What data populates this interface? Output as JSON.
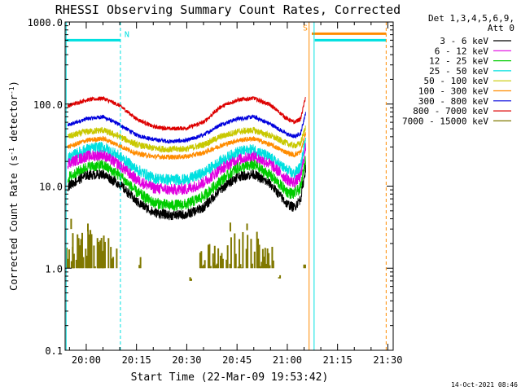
{
  "chart_data": {
    "type": "line",
    "title": "RHESSI Observing Summary Count Rates, Corrected",
    "xlabel": "Start Time (22-Mar-09 19:53:42)",
    "ylabel_main": "Corrected Count Rate (s",
    "ylabel_sup1": "-1",
    "ylabel_mid": " detector",
    "ylabel_sup2": "-1",
    "ylabel_end": ")",
    "y_scale": "log",
    "ylim": [
      0.1,
      1000
    ],
    "xlim_minutes": [
      -6.3,
      91.6
    ],
    "y_ticks": [
      {
        "value": 1000,
        "label": "1000.0"
      },
      {
        "value": 100,
        "label": "100.0"
      },
      {
        "value": 10,
        "label": "10.0"
      },
      {
        "value": 1,
        "label": "1.0"
      },
      {
        "value": 0.1,
        "label": "0.1"
      }
    ],
    "x_ticks": [
      {
        "value": 0,
        "label": "20:00"
      },
      {
        "value": 15,
        "label": "20:15"
      },
      {
        "value": 30,
        "label": "20:30"
      },
      {
        "value": 45,
        "label": "20:45"
      },
      {
        "value": 60,
        "label": "21:00"
      },
      {
        "value": 75,
        "label": "21:15"
      },
      {
        "value": 90,
        "label": "21:30"
      }
    ],
    "legend_header": [
      "Det 1,3,4,5,6,9,",
      "Att 0"
    ],
    "legend_position": "right",
    "series": [
      {
        "name": "3 - 6 keV",
        "color": "#000000",
        "noise": 0.06,
        "x": [
          -5.5,
          0,
          5,
          10,
          15,
          20,
          25,
          30,
          35,
          40,
          45,
          50,
          55,
          60,
          62,
          64,
          65.5
        ],
        "y": [
          10,
          13.5,
          14,
          10.5,
          6.5,
          4.8,
          4.4,
          4.5,
          5.5,
          9,
          13,
          14,
          10.5,
          6,
          5.5,
          7,
          17
        ]
      },
      {
        "name": "6 - 12 keV",
        "color": "#e000e0",
        "noise": 0.07,
        "x": [
          -5.5,
          0,
          5,
          10,
          15,
          20,
          25,
          30,
          35,
          40,
          45,
          50,
          55,
          60,
          62,
          64,
          65.5
        ],
        "y": [
          19,
          23,
          24,
          18,
          12,
          9.5,
          9,
          9.2,
          11,
          16,
          21,
          23,
          18.5,
          12,
          11,
          13,
          30
        ]
      },
      {
        "name": "12 - 25 keV",
        "color": "#00cc00",
        "noise": 0.07,
        "x": [
          -5.5,
          0,
          5,
          10,
          15,
          20,
          25,
          30,
          35,
          40,
          45,
          50,
          55,
          60,
          62,
          64,
          65.5
        ],
        "y": [
          12.5,
          17,
          18,
          13.5,
          8.5,
          6.3,
          5.8,
          6,
          7.5,
          11.5,
          16.5,
          18,
          13.5,
          8.5,
          8,
          9.5,
          22
        ]
      },
      {
        "name": "25 - 50 keV",
        "color": "#00e0e0",
        "noise": 0.07,
        "x": [
          -5.5,
          0,
          5,
          10,
          15,
          20,
          25,
          30,
          35,
          40,
          45,
          50,
          55,
          60,
          62,
          64,
          65.5
        ],
        "y": [
          22,
          28,
          30,
          23,
          16,
          12.5,
          12,
          12,
          14.5,
          20,
          26,
          28,
          22,
          15.5,
          14,
          17,
          40
        ]
      },
      {
        "name": "50 - 100 keV",
        "color": "#c8c800",
        "noise": 0.04,
        "x": [
          -5.5,
          0,
          5,
          10,
          15,
          20,
          25,
          30,
          35,
          40,
          45,
          50,
          55,
          60,
          62,
          64,
          65.5
        ],
        "y": [
          40,
          46,
          48,
          40,
          32,
          29,
          28,
          28.5,
          32,
          40,
          46,
          48,
          41,
          33,
          31,
          33,
          55
        ]
      },
      {
        "name": "100 - 300 keV",
        "color": "#ff8c00",
        "noise": 0.03,
        "x": [
          -5.5,
          0,
          5,
          10,
          15,
          20,
          25,
          30,
          35,
          40,
          45,
          50,
          55,
          60,
          62,
          64,
          65.5
        ],
        "y": [
          30,
          36,
          38,
          31,
          25,
          23,
          22.5,
          23,
          25.5,
          31,
          36,
          38,
          32,
          25.5,
          24,
          26,
          45
        ]
      },
      {
        "name": "300 - 800 keV",
        "color": "#0000dd",
        "noise": 0.025,
        "x": [
          -5.5,
          0,
          5,
          10,
          15,
          20,
          25,
          30,
          35,
          40,
          45,
          50,
          55,
          60,
          62,
          64,
          65.5
        ],
        "y": [
          55,
          66,
          70,
          56,
          42,
          37,
          35,
          36,
          42,
          56,
          66,
          70,
          57,
          43,
          40,
          44,
          80
        ]
      },
      {
        "name": "800 - 7000 keV",
        "color": "#dd0000",
        "noise": 0.025,
        "x": [
          -5.5,
          0,
          5,
          10,
          15,
          20,
          25,
          30,
          35,
          40,
          45,
          50,
          55,
          60,
          62,
          64,
          65.5
        ],
        "y": [
          95,
          112,
          118,
          96,
          66,
          53,
          50,
          51,
          60,
          92,
          112,
          118,
          97,
          66,
          60,
          66,
          125
        ]
      },
      {
        "name": "7000 - 15000 keV",
        "color": "#807800",
        "noise": 0,
        "x": [],
        "y": []
      }
    ],
    "annotations": [
      {
        "type": "hline",
        "x1": -6.3,
        "x2": 10.2,
        "y": 600,
        "color": "#00e0e0",
        "label": "N"
      },
      {
        "type": "vline",
        "x": 10.2,
        "color": "#00e0e0",
        "dashed": true
      },
      {
        "type": "vline",
        "x": -6.0,
        "color": "#00e0e0",
        "dashed": false
      },
      {
        "type": "hline",
        "x1": 67.3,
        "x2": 89.5,
        "y": 720,
        "color": "#ff8c00",
        "label": "S"
      },
      {
        "type": "hline",
        "x1": 68.2,
        "x2": 89.5,
        "y": 600,
        "color": "#00e0e0"
      },
      {
        "type": "vline",
        "x": 66.5,
        "color": "#ff8c00",
        "dashed": false
      },
      {
        "type": "vline",
        "x": 68.0,
        "color": "#00e0e0",
        "dashed": false
      },
      {
        "type": "vline",
        "x": 89.5,
        "color": "#ff8c00",
        "dashed": true
      }
    ],
    "footer_date": "14-Oct-2021 08:46"
  }
}
